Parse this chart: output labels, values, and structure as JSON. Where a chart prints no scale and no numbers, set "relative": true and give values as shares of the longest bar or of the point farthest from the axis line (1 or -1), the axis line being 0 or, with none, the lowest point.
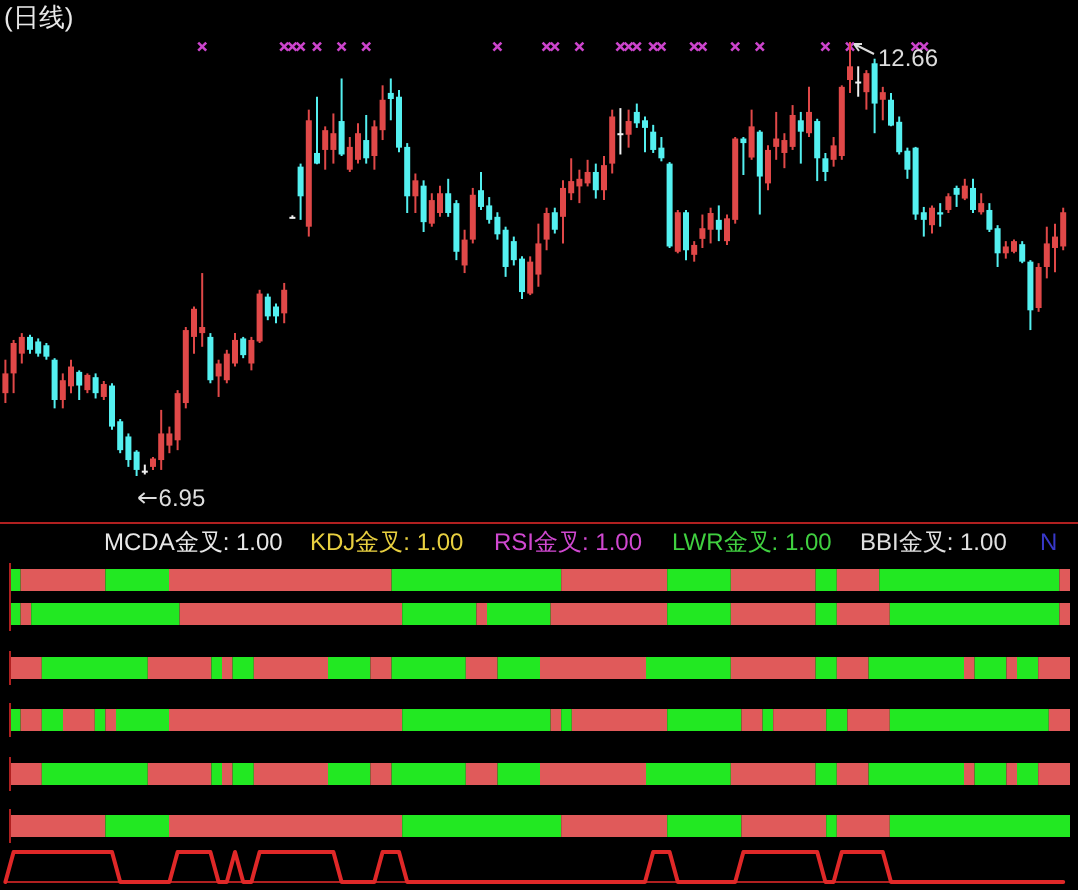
{
  "chart_data": [
    {
      "type": "candlestick",
      "title": "(日线)",
      "categories": [
        null,
        null,
        null,
        null,
        null,
        null,
        null,
        null,
        null,
        null,
        null,
        null,
        null,
        null,
        null,
        null,
        null,
        null,
        null,
        null,
        null,
        null,
        null,
        null,
        null,
        null,
        null,
        null,
        null,
        null,
        null,
        null,
        null,
        null,
        null,
        null,
        null,
        null,
        null,
        null,
        null,
        null,
        null,
        null,
        null,
        null,
        null,
        null,
        null,
        null,
        null,
        null,
        null,
        null,
        null,
        null,
        null,
        null,
        null,
        null,
        null,
        null,
        null,
        null,
        null,
        null,
        null,
        null,
        null,
        null,
        null,
        null,
        null,
        null,
        null,
        null,
        null,
        null,
        null,
        null,
        null,
        null,
        null,
        null,
        null,
        null,
        null,
        null,
        null,
        null,
        null,
        null,
        null,
        null,
        null,
        null,
        null,
        null,
        null,
        null,
        null,
        null,
        null,
        null,
        null,
        null,
        null,
        null,
        null,
        null,
        null,
        null,
        null,
        null,
        null,
        null,
        null,
        null,
        null,
        null,
        null,
        null,
        null,
        null,
        null,
        null,
        null,
        null,
        null,
        null
      ],
      "ohlc": [
        [
          8.04,
          8.48,
          7.91,
          8.3
        ],
        [
          8.3,
          8.74,
          8.04,
          8.7
        ],
        [
          8.56,
          8.83,
          8.43,
          8.78
        ],
        [
          8.78,
          8.81,
          8.56,
          8.61
        ],
        [
          8.72,
          8.76,
          8.52,
          8.56
        ],
        [
          8.67,
          8.7,
          8.48,
          8.52
        ],
        [
          8.48,
          8.5,
          7.84,
          7.95
        ],
        [
          7.95,
          8.3,
          7.84,
          8.21
        ],
        [
          8.13,
          8.48,
          8.04,
          8.39
        ],
        [
          8.32,
          8.34,
          7.95,
          8.14
        ],
        [
          8.08,
          8.3,
          8.04,
          8.28
        ],
        [
          8.25,
          8.3,
          7.97,
          8.04
        ],
        [
          7.99,
          8.2,
          7.95,
          8.16
        ],
        [
          8.14,
          8.17,
          7.56,
          7.6
        ],
        [
          7.67,
          7.7,
          7.25,
          7.29
        ],
        [
          7.47,
          7.51,
          7.07,
          7.16
        ],
        [
          7.27,
          7.29,
          6.95,
          7.03
        ],
        [
          7.02,
          7.1,
          6.97,
          7.02
        ],
        [
          7.07,
          7.2,
          7.03,
          7.18
        ],
        [
          7.16,
          7.82,
          7.03,
          7.51
        ],
        [
          7.35,
          7.6,
          7.25,
          7.51
        ],
        [
          7.42,
          8.08,
          7.29,
          8.04
        ],
        [
          7.91,
          8.91,
          7.84,
          8.87
        ],
        [
          8.78,
          9.18,
          8.56,
          9.15
        ],
        [
          8.83,
          9.62,
          8.65,
          8.91
        ],
        [
          8.78,
          8.83,
          8.17,
          8.21
        ],
        [
          8.26,
          8.48,
          7.99,
          8.43
        ],
        [
          8.21,
          8.61,
          8.17,
          8.56
        ],
        [
          8.43,
          8.83,
          8.39,
          8.74
        ],
        [
          8.76,
          8.78,
          8.5,
          8.54
        ],
        [
          8.43,
          8.78,
          8.34,
          8.74
        ],
        [
          8.72,
          9.4,
          8.7,
          9.35
        ],
        [
          9.31,
          9.35,
          9.0,
          9.05
        ],
        [
          9.18,
          9.22,
          8.96,
          9.05
        ],
        [
          9.09,
          9.49,
          8.96,
          9.4
        ],
        [
          10.36,
          10.38,
          10.34,
          10.36
        ],
        [
          11.02,
          11.06,
          10.32,
          10.63
        ],
        [
          10.23,
          11.77,
          10.1,
          11.63
        ],
        [
          11.2,
          11.94,
          11.05,
          11.06
        ],
        [
          11.24,
          11.55,
          10.98,
          11.5
        ],
        [
          11.24,
          11.72,
          11.06,
          11.46
        ],
        [
          11.62,
          12.18,
          11.16,
          11.18
        ],
        [
          10.98,
          11.41,
          10.95,
          11.28
        ],
        [
          11.11,
          11.59,
          11.06,
          11.46
        ],
        [
          11.37,
          11.7,
          11.06,
          11.13
        ],
        [
          11.16,
          11.63,
          10.98,
          11.55
        ],
        [
          11.5,
          12.09,
          11.37,
          11.9
        ],
        [
          11.99,
          12.18,
          11.63,
          11.91
        ],
        [
          11.94,
          12.03,
          11.21,
          11.27
        ],
        [
          11.28,
          11.33,
          10.41,
          10.63
        ],
        [
          10.63,
          10.93,
          10.41,
          10.84
        ],
        [
          10.77,
          10.84,
          10.16,
          10.29
        ],
        [
          10.27,
          10.67,
          10.23,
          10.58
        ],
        [
          10.41,
          10.77,
          10.36,
          10.67
        ],
        [
          10.67,
          10.86,
          10.36,
          10.41
        ],
        [
          10.54,
          10.58,
          9.79,
          9.9
        ],
        [
          9.72,
          10.19,
          9.62,
          10.06
        ],
        [
          10.06,
          10.74,
          10.01,
          10.65
        ],
        [
          10.71,
          10.95,
          10.45,
          10.49
        ],
        [
          10.51,
          10.62,
          10.27,
          10.32
        ],
        [
          10.36,
          10.42,
          10.06,
          10.13
        ],
        [
          10.19,
          10.23,
          9.57,
          9.7
        ],
        [
          10.04,
          10.1,
          9.72,
          9.79
        ],
        [
          9.81,
          9.84,
          9.28,
          9.37
        ],
        [
          9.35,
          9.84,
          9.33,
          9.77
        ],
        [
          9.6,
          10.27,
          9.44,
          10.01
        ],
        [
          10.06,
          10.48,
          9.92,
          10.41
        ],
        [
          10.42,
          10.48,
          10.14,
          10.19
        ],
        [
          10.36,
          10.84,
          10.01,
          10.74
        ],
        [
          10.67,
          11.13,
          10.58,
          10.83
        ],
        [
          10.76,
          10.98,
          10.54,
          10.86
        ],
        [
          10.8,
          11.11,
          10.76,
          10.95
        ],
        [
          10.95,
          11.06,
          10.6,
          10.71
        ],
        [
          10.71,
          11.16,
          10.58,
          11.04
        ],
        [
          11.06,
          11.77,
          10.93,
          11.68
        ],
        [
          11.46,
          11.79,
          11.18,
          11.46
        ],
        [
          11.44,
          11.77,
          11.27,
          11.62
        ],
        [
          11.74,
          11.85,
          11.53,
          11.59
        ],
        [
          11.63,
          11.68,
          11.21,
          11.53
        ],
        [
          11.48,
          11.57,
          11.2,
          11.24
        ],
        [
          11.27,
          11.41,
          11.09,
          11.13
        ],
        [
          11.06,
          11.08,
          9.95,
          9.97
        ],
        [
          9.9,
          10.45,
          9.88,
          10.42
        ],
        [
          10.42,
          10.45,
          9.79,
          9.92
        ],
        [
          9.86,
          10.04,
          9.77,
          9.99
        ],
        [
          10.07,
          10.39,
          9.95,
          10.21
        ],
        [
          10.19,
          10.48,
          10.01,
          10.41
        ],
        [
          10.32,
          10.51,
          10.04,
          10.19
        ],
        [
          10.04,
          10.39,
          9.99,
          10.34
        ],
        [
          10.32,
          11.41,
          10.27,
          11.39
        ],
        [
          11.39,
          11.41,
          10.91,
          11.33
        ],
        [
          11.14,
          11.77,
          11.11,
          11.55
        ],
        [
          11.48,
          11.5,
          10.39,
          10.89
        ],
        [
          10.8,
          11.3,
          10.71,
          11.24
        ],
        [
          11.28,
          11.74,
          11.11,
          11.39
        ],
        [
          11.2,
          11.46,
          11.0,
          11.37
        ],
        [
          11.28,
          11.83,
          11.24,
          11.7
        ],
        [
          11.63,
          11.74,
          11.06,
          11.48
        ],
        [
          11.46,
          12.07,
          11.41,
          11.74
        ],
        [
          11.62,
          11.65,
          10.83,
          11.13
        ],
        [
          11.13,
          11.2,
          10.83,
          10.95
        ],
        [
          11.11,
          11.41,
          11.02,
          11.3
        ],
        [
          11.16,
          12.09,
          11.11,
          12.07
        ],
        [
          12.16,
          12.66,
          11.99,
          12.34
        ],
        [
          12.14,
          12.34,
          11.94,
          12.14
        ],
        [
          12.0,
          12.29,
          11.77,
          12.25
        ],
        [
          12.38,
          12.44,
          11.46,
          11.85
        ],
        [
          11.9,
          12.07,
          11.63,
          12.0
        ],
        [
          11.9,
          11.99,
          11.55,
          11.56
        ],
        [
          11.61,
          11.68,
          11.18,
          11.21
        ],
        [
          11.23,
          11.27,
          10.86,
          10.98
        ],
        [
          11.27,
          11.28,
          10.32,
          10.39
        ],
        [
          10.42,
          10.49,
          10.1,
          10.32
        ],
        [
          10.25,
          10.51,
          10.14,
          10.48
        ],
        [
          10.42,
          10.54,
          10.23,
          10.39
        ],
        [
          10.45,
          10.67,
          10.41,
          10.63
        ],
        [
          10.74,
          10.77,
          10.49,
          10.65
        ],
        [
          10.6,
          10.86,
          10.58,
          10.77
        ],
        [
          10.74,
          10.86,
          10.41,
          10.45
        ],
        [
          10.42,
          10.67,
          10.39,
          10.54
        ],
        [
          10.45,
          10.54,
          10.16,
          10.19
        ],
        [
          10.21,
          10.25,
          9.7,
          9.88
        ],
        [
          9.88,
          10.04,
          9.81,
          9.97
        ],
        [
          9.9,
          10.06,
          9.88,
          10.04
        ],
        [
          10.0,
          10.04,
          9.75,
          9.77
        ],
        [
          9.77,
          9.79,
          8.87,
          9.13
        ],
        [
          9.16,
          9.75,
          9.11,
          9.7
        ],
        [
          9.7,
          10.23,
          9.55,
          10.01
        ],
        [
          9.95,
          10.27,
          9.63,
          10.1
        ],
        [
          9.97,
          10.48,
          9.92,
          10.42
        ]
      ],
      "colors": [
        "#e04848",
        "#e04848",
        "#e04848",
        "#54f0f0",
        "#54f0f0",
        "#54f0f0",
        "#54f0f0",
        "#e04848",
        "#e04848",
        "#54f0f0",
        "#e04848",
        "#54f0f0",
        "#e04848",
        "#54f0f0",
        "#54f0f0",
        "#54f0f0",
        "#54f0f0",
        "#f0f0f0",
        "#e04848",
        "#e04848",
        "#e04848",
        "#e04848",
        "#e04848",
        "#e04848",
        "#e04848",
        "#54f0f0",
        "#e04848",
        "#e04848",
        "#e04848",
        "#54f0f0",
        "#e04848",
        "#e04848",
        "#54f0f0",
        "#54f0f0",
        "#e04848",
        "#f0f0f0",
        "#54f0f0",
        "#e04848",
        "#54f0f0",
        "#e04848",
        "#e04848",
        "#54f0f0",
        "#e04848",
        "#e04848",
        "#54f0f0",
        "#e04848",
        "#e04848",
        "#54f0f0",
        "#54f0f0",
        "#54f0f0",
        "#e04848",
        "#54f0f0",
        "#e04848",
        "#e04848",
        "#54f0f0",
        "#54f0f0",
        "#e04848",
        "#e04848",
        "#54f0f0",
        "#54f0f0",
        "#54f0f0",
        "#54f0f0",
        "#54f0f0",
        "#54f0f0",
        "#e04848",
        "#e04848",
        "#e04848",
        "#54f0f0",
        "#e04848",
        "#e04848",
        "#e04848",
        "#e04848",
        "#54f0f0",
        "#e04848",
        "#e04848",
        "#f0f0f0",
        "#e04848",
        "#54f0f0",
        "#54f0f0",
        "#54f0f0",
        "#54f0f0",
        "#54f0f0",
        "#e04848",
        "#54f0f0",
        "#e04848",
        "#e04848",
        "#e04848",
        "#54f0f0",
        "#e04848",
        "#e04848",
        "#54f0f0",
        "#e04848",
        "#54f0f0",
        "#e04848",
        "#e04848",
        "#e04848",
        "#e04848",
        "#54f0f0",
        "#e04848",
        "#54f0f0",
        "#54f0f0",
        "#e04848",
        "#e04848",
        "#e04848",
        "#f0f0f0",
        "#e04848",
        "#54f0f0",
        "#e04848",
        "#54f0f0",
        "#54f0f0",
        "#54f0f0",
        "#54f0f0",
        "#54f0f0",
        "#e04848",
        "#54f0f0",
        "#e04848",
        "#54f0f0",
        "#e04848",
        "#54f0f0",
        "#e04848",
        "#54f0f0",
        "#54f0f0",
        "#e04848",
        "#e04848",
        "#54f0f0",
        "#54f0f0",
        "#e04848",
        "#e04848",
        "#e04848",
        "#e04848"
      ],
      "series": [
        {
          "type": "scatter",
          "color": "#cc44cc",
          "values": [
            null,
            null,
            null,
            null,
            null,
            null,
            null,
            null,
            null,
            null,
            null,
            null,
            null,
            null,
            null,
            null,
            null,
            null,
            null,
            null,
            null,
            null,
            null,
            null,
            12.6,
            null,
            null,
            null,
            null,
            null,
            null,
            null,
            null,
            null,
            12.6,
            12.6,
            12.6,
            null,
            12.6,
            null,
            null,
            12.6,
            null,
            null,
            12.6,
            null,
            null,
            null,
            null,
            null,
            null,
            null,
            null,
            null,
            null,
            null,
            null,
            null,
            null,
            null,
            12.6,
            null,
            null,
            null,
            null,
            null,
            12.6,
            12.6,
            null,
            null,
            12.6,
            null,
            null,
            null,
            null,
            12.6,
            12.6,
            12.6,
            null,
            12.6,
            12.6,
            null,
            null,
            null,
            12.6,
            12.6,
            null,
            null,
            null,
            12.6,
            null,
            null,
            12.6,
            null,
            null,
            null,
            null,
            null,
            null,
            null,
            12.6,
            null,
            null,
            12.6,
            null,
            null,
            null,
            null,
            null,
            null,
            null,
            12.6,
            12.6,
            null,
            null,
            null,
            null,
            null,
            null,
            null,
            null,
            null,
            null,
            null,
            null,
            null,
            null,
            null,
            null,
            null
          ]
        }
      ],
      "marker": "cross",
      "annotations": [
        {
          "text": "12.66",
          "y": 12.66
        },
        "6.95"
      ]
    },
    {
      "type": "bar",
      "orientation": "horizontal",
      "stacked": true,
      "relative": true,
      "categories": [
        null
      ],
      "series": [
        {
          "color": "#22e822",
          "values": [
            0.01
          ]
        },
        {
          "color": "#e05a5a",
          "values": [
            0.08
          ]
        },
        {
          "color": "#22e822",
          "values": [
            0.06
          ]
        },
        {
          "color": "#e05a5a",
          "values": [
            0.21
          ]
        },
        {
          "color": "#22e822",
          "values": [
            0.16
          ]
        },
        {
          "color": "#e05a5a",
          "values": [
            0.1
          ]
        },
        {
          "color": "#22e822",
          "values": [
            0.06
          ]
        },
        {
          "color": "#e05a5a",
          "values": [
            0.08
          ]
        },
        {
          "color": "#22e822",
          "values": [
            0.02
          ]
        },
        {
          "color": "#e05a5a",
          "values": [
            0.04
          ]
        },
        {
          "color": "#22e822",
          "values": [
            0.17
          ]
        },
        {
          "color": "#e05a5a",
          "values": [
            0.01
          ]
        }
      ],
      "annotations": [
        "MCDA金叉: 1.00",
        "KDJ金叉: 1.00",
        "RSI金叉: 1.00",
        "LWR金叉: 1.00",
        "BBI金叉: 1.00",
        "N"
      ]
    },
    {
      "type": "bar",
      "orientation": "horizontal",
      "stacked": true,
      "relative": true,
      "categories": [
        null
      ],
      "series": [
        {
          "color": "#22e822",
          "values": [
            0.01
          ]
        },
        {
          "color": "#e05a5a",
          "values": [
            0.01
          ]
        },
        {
          "color": "#22e822",
          "values": [
            0.14
          ]
        },
        {
          "color": "#e05a5a",
          "values": [
            0.21
          ]
        },
        {
          "color": "#22e822",
          "values": [
            0.07
          ]
        },
        {
          "color": "#e05a5a",
          "values": [
            0.01
          ]
        },
        {
          "color": "#22e822",
          "values": [
            0.06
          ]
        },
        {
          "color": "#e05a5a",
          "values": [
            0.11
          ]
        },
        {
          "color": "#22e822",
          "values": [
            0.06
          ]
        },
        {
          "color": "#e05a5a",
          "values": [
            0.08
          ]
        },
        {
          "color": "#22e822",
          "values": [
            0.02
          ]
        },
        {
          "color": "#e05a5a",
          "values": [
            0.05
          ]
        },
        {
          "color": "#22e822",
          "values": [
            0.16
          ]
        },
        {
          "color": "#e05a5a",
          "values": [
            0.01
          ]
        }
      ]
    },
    {
      "type": "bar",
      "orientation": "horizontal",
      "stacked": true,
      "relative": true,
      "categories": [
        null
      ],
      "series": [
        {
          "color": "#e05a5a",
          "values": [
            0.03
          ]
        },
        {
          "color": "#22e822",
          "values": [
            0.1
          ]
        },
        {
          "color": "#e05a5a",
          "values": [
            0.06
          ]
        },
        {
          "color": "#22e822",
          "values": [
            0.01
          ]
        },
        {
          "color": "#e05a5a",
          "values": [
            0.01
          ]
        },
        {
          "color": "#22e822",
          "values": [
            0.02
          ]
        },
        {
          "color": "#e05a5a",
          "values": [
            0.07
          ]
        },
        {
          "color": "#22e822",
          "values": [
            0.04
          ]
        },
        {
          "color": "#e05a5a",
          "values": [
            0.02
          ]
        },
        {
          "color": "#22e822",
          "values": [
            0.07
          ]
        },
        {
          "color": "#e05a5a",
          "values": [
            0.03
          ]
        },
        {
          "color": "#22e822",
          "values": [
            0.04
          ]
        },
        {
          "color": "#e05a5a",
          "values": [
            0.1
          ]
        },
        {
          "color": "#22e822",
          "values": [
            0.08
          ]
        },
        {
          "color": "#e05a5a",
          "values": [
            0.08
          ]
        },
        {
          "color": "#22e822",
          "values": [
            0.02
          ]
        },
        {
          "color": "#e05a5a",
          "values": [
            0.03
          ]
        },
        {
          "color": "#22e822",
          "values": [
            0.09
          ]
        },
        {
          "color": "#e05a5a",
          "values": [
            0.01
          ]
        },
        {
          "color": "#22e822",
          "values": [
            0.03
          ]
        },
        {
          "color": "#e05a5a",
          "values": [
            0.01
          ]
        },
        {
          "color": "#22e822",
          "values": [
            0.02
          ]
        },
        {
          "color": "#e05a5a",
          "values": [
            0.03
          ]
        }
      ]
    },
    {
      "type": "bar",
      "orientation": "horizontal",
      "stacked": true,
      "relative": true,
      "categories": [
        null
      ],
      "series": [
        {
          "color": "#22e822",
          "values": [
            0.01
          ]
        },
        {
          "color": "#e05a5a",
          "values": [
            0.02
          ]
        },
        {
          "color": "#22e822",
          "values": [
            0.02
          ]
        },
        {
          "color": "#e05a5a",
          "values": [
            0.03
          ]
        },
        {
          "color": "#22e822",
          "values": [
            0.01
          ]
        },
        {
          "color": "#e05a5a",
          "values": [
            0.01
          ]
        },
        {
          "color": "#22e822",
          "values": [
            0.05
          ]
        },
        {
          "color": "#e05a5a",
          "values": [
            0.22
          ]
        },
        {
          "color": "#22e822",
          "values": [
            0.14
          ]
        },
        {
          "color": "#e05a5a",
          "values": [
            0.01
          ]
        },
        {
          "color": "#22e822",
          "values": [
            0.01
          ]
        },
        {
          "color": "#e05a5a",
          "values": [
            0.09
          ]
        },
        {
          "color": "#22e822",
          "values": [
            0.07
          ]
        },
        {
          "color": "#e05a5a",
          "values": [
            0.02
          ]
        },
        {
          "color": "#22e822",
          "values": [
            0.01
          ]
        },
        {
          "color": "#e05a5a",
          "values": [
            0.05
          ]
        },
        {
          "color": "#22e822",
          "values": [
            0.02
          ]
        },
        {
          "color": "#e05a5a",
          "values": [
            0.04
          ]
        },
        {
          "color": "#22e822",
          "values": [
            0.15
          ]
        },
        {
          "color": "#e05a5a",
          "values": [
            0.02
          ]
        }
      ]
    },
    {
      "type": "bar",
      "orientation": "horizontal",
      "stacked": true,
      "relative": true,
      "categories": [
        null
      ],
      "series": [
        {
          "color": "#e05a5a",
          "values": [
            0.03
          ]
        },
        {
          "color": "#22e822",
          "values": [
            0.1
          ]
        },
        {
          "color": "#e05a5a",
          "values": [
            0.06
          ]
        },
        {
          "color": "#22e822",
          "values": [
            0.01
          ]
        },
        {
          "color": "#e05a5a",
          "values": [
            0.01
          ]
        },
        {
          "color": "#22e822",
          "values": [
            0.02
          ]
        },
        {
          "color": "#e05a5a",
          "values": [
            0.07
          ]
        },
        {
          "color": "#22e822",
          "values": [
            0.04
          ]
        },
        {
          "color": "#e05a5a",
          "values": [
            0.02
          ]
        },
        {
          "color": "#22e822",
          "values": [
            0.07
          ]
        },
        {
          "color": "#e05a5a",
          "values": [
            0.03
          ]
        },
        {
          "color": "#22e822",
          "values": [
            0.04
          ]
        },
        {
          "color": "#e05a5a",
          "values": [
            0.1
          ]
        },
        {
          "color": "#22e822",
          "values": [
            0.08
          ]
        },
        {
          "color": "#e05a5a",
          "values": [
            0.08
          ]
        },
        {
          "color": "#22e822",
          "values": [
            0.02
          ]
        },
        {
          "color": "#e05a5a",
          "values": [
            0.03
          ]
        },
        {
          "color": "#22e822",
          "values": [
            0.09
          ]
        },
        {
          "color": "#e05a5a",
          "values": [
            0.01
          ]
        },
        {
          "color": "#22e822",
          "values": [
            0.03
          ]
        },
        {
          "color": "#e05a5a",
          "values": [
            0.01
          ]
        },
        {
          "color": "#22e822",
          "values": [
            0.02
          ]
        },
        {
          "color": "#e05a5a",
          "values": [
            0.03
          ]
        }
      ]
    },
    {
      "type": "bar",
      "orientation": "horizontal",
      "stacked": true,
      "relative": true,
      "categories": [
        null
      ],
      "series": [
        {
          "color": "#e05a5a",
          "values": [
            0.09
          ]
        },
        {
          "color": "#22e822",
          "values": [
            0.06
          ]
        },
        {
          "color": "#e05a5a",
          "values": [
            0.22
          ]
        },
        {
          "color": "#22e822",
          "values": [
            0.15
          ]
        },
        {
          "color": "#e05a5a",
          "values": [
            0.1
          ]
        },
        {
          "color": "#22e822",
          "values": [
            0.07
          ]
        },
        {
          "color": "#e05a5a",
          "values": [
            0.08
          ]
        },
        {
          "color": "#22e822",
          "values": [
            0.01
          ]
        },
        {
          "color": "#e05a5a",
          "values": [
            0.05
          ]
        },
        {
          "color": "#22e822",
          "values": [
            0.17
          ]
        }
      ]
    },
    {
      "type": "line",
      "relative": true,
      "categories": [
        null,
        null,
        null,
        null,
        null,
        null,
        null,
        null,
        null,
        null,
        null,
        null,
        null,
        null,
        null,
        null,
        null,
        null,
        null,
        null,
        null,
        null,
        null,
        null,
        null,
        null,
        null,
        null,
        null,
        null,
        null,
        null,
        null,
        null,
        null,
        null,
        null,
        null,
        null,
        null,
        null,
        null,
        null,
        null,
        null,
        null,
        null,
        null,
        null,
        null,
        null,
        null,
        null,
        null,
        null,
        null,
        null,
        null,
        null,
        null,
        null,
        null,
        null,
        null,
        null,
        null,
        null,
        null,
        null,
        null,
        null,
        null,
        null,
        null,
        null,
        null,
        null,
        null,
        null,
        null,
        null,
        null,
        null,
        null,
        null,
        null,
        null,
        null,
        null,
        null,
        null,
        null,
        null,
        null,
        null,
        null,
        null,
        null,
        null,
        null,
        null,
        null,
        null,
        null,
        null,
        null,
        null,
        null,
        null,
        null,
        null,
        null,
        null,
        null,
        null,
        null,
        null,
        null,
        null,
        null,
        null,
        null,
        null,
        null,
        null,
        null,
        null,
        null,
        null,
        null
      ],
      "series": [
        {
          "color": "#e02828",
          "values": [
            0,
            1,
            1,
            1,
            1,
            1,
            1,
            1,
            1,
            1,
            1,
            1,
            1,
            1,
            0,
            0,
            0,
            0,
            0,
            0,
            0,
            1,
            1,
            1,
            1,
            1,
            0,
            0,
            1,
            0,
            0,
            1,
            1,
            1,
            1,
            1,
            1,
            1,
            1,
            1,
            1,
            0,
            0,
            0,
            0,
            0,
            1,
            1,
            1,
            0,
            0,
            0,
            0,
            0,
            0,
            0,
            0,
            0,
            0,
            0,
            0,
            0,
            0,
            0,
            0,
            0,
            0,
            0,
            0,
            0,
            0,
            0,
            0,
            0,
            0,
            0,
            0,
            0,
            0,
            1,
            1,
            1,
            0,
            0,
            0,
            0,
            0,
            0,
            0,
            0,
            1,
            1,
            1,
            1,
            1,
            1,
            1,
            1,
            1,
            1,
            0,
            0,
            1,
            1,
            1,
            1,
            1,
            1,
            0,
            0,
            0,
            0,
            0,
            0,
            0,
            0,
            0,
            0,
            0,
            0,
            0,
            0,
            0,
            0,
            0,
            0,
            0,
            0,
            0,
            0
          ]
        }
      ]
    }
  ]
}
